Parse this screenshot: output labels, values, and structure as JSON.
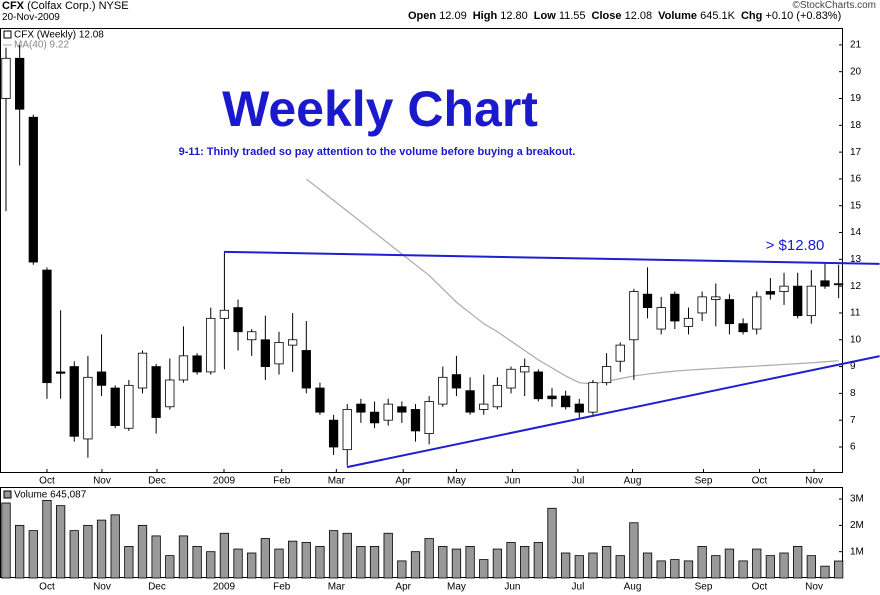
{
  "header": {
    "symbol": "CFX",
    "name": "(Colfax Corp.)",
    "exchange": "NYSE",
    "date": "20-Nov-2009",
    "quote": [
      {
        "label": "Open",
        "value": "12.09"
      },
      {
        "label": "High",
        "value": "12.80"
      },
      {
        "label": "Low",
        "value": "11.55"
      },
      {
        "label": "Close",
        "value": "12.08"
      },
      {
        "label": "Volume",
        "value": "645.1K"
      },
      {
        "label": "Chg",
        "value": "+0.10 (+0.83%)"
      }
    ],
    "credit": "©StockCharts.com"
  },
  "chart_data": {
    "type": "candlestick",
    "legend": {
      "price": "CFX (Weekly) 12.08",
      "ma": "MA(40) 9.22",
      "volume": "Volume 645,087"
    },
    "annotations": [
      "Weekly Chart",
      "9-11: Thinly traded so pay attention to the volume before buying a breakout.",
      "> $12.80"
    ],
    "open": [
      19.0,
      20.5,
      18.3,
      12.6,
      8.8,
      9.0,
      6.3,
      8.8,
      8.2,
      6.7,
      8.2,
      9.0,
      7.5,
      8.5,
      9.4,
      8.8,
      10.8,
      11.2,
      10.0,
      10.0,
      9.1,
      9.8,
      9.6,
      8.2,
      7.0,
      5.9,
      7.6,
      7.3,
      7.0,
      7.5,
      7.4,
      6.5,
      7.6,
      8.7,
      8.1,
      7.4,
      7.5,
      8.2,
      8.8,
      8.8,
      7.9,
      7.9,
      7.6,
      7.3,
      8.4,
      9.2,
      10.0,
      11.7,
      10.4,
      11.7,
      10.5,
      11.0,
      11.5,
      11.5,
      10.6,
      10.4,
      11.8,
      11.8,
      12.0,
      10.9,
      12.2,
      12.09
    ],
    "high": [
      20.9,
      21.0,
      18.4,
      12.7,
      11.1,
      9.2,
      9.4,
      10.2,
      8.3,
      8.5,
      9.6,
      9.1,
      9.3,
      10.5,
      9.5,
      11.2,
      13.3,
      11.5,
      10.4,
      10.9,
      10.3,
      11.0,
      10.7,
      8.4,
      7.2,
      7.6,
      7.8,
      7.7,
      7.8,
      7.7,
      7.6,
      7.9,
      9.0,
      9.4,
      8.6,
      8.7,
      8.6,
      9.0,
      9.3,
      8.9,
      8.2,
      8.1,
      7.8,
      8.5,
      9.5,
      9.9,
      11.9,
      12.7,
      11.6,
      11.8,
      11.2,
      11.8,
      12.1,
      11.7,
      10.8,
      11.8,
      12.3,
      12.5,
      12.5,
      12.6,
      12.9,
      12.8
    ],
    "low": [
      14.8,
      16.5,
      12.8,
      7.8,
      7.8,
      6.2,
      5.6,
      7.9,
      6.7,
      6.6,
      8.0,
      6.5,
      7.4,
      8.4,
      8.7,
      8.7,
      8.9,
      9.6,
      9.4,
      8.5,
      8.7,
      8.8,
      8.0,
      7.2,
      5.7,
      5.3,
      6.9,
      6.7,
      6.8,
      6.9,
      6.2,
      6.1,
      7.5,
      7.9,
      7.2,
      7.2,
      7.4,
      8.0,
      7.9,
      7.7,
      7.5,
      7.4,
      7.1,
      7.2,
      8.3,
      8.8,
      8.5,
      10.8,
      10.2,
      10.4,
      10.2,
      10.7,
      10.5,
      10.2,
      10.2,
      10.2,
      11.5,
      11.3,
      10.8,
      10.6,
      11.9,
      11.55
    ],
    "close": [
      20.5,
      18.6,
      12.9,
      8.4,
      8.75,
      6.4,
      8.6,
      8.3,
      6.8,
      8.3,
      9.5,
      7.1,
      8.5,
      9.4,
      8.8,
      10.8,
      11.1,
      10.3,
      10.3,
      9.0,
      9.9,
      10.0,
      8.2,
      7.3,
      6.0,
      7.4,
      7.3,
      6.9,
      7.6,
      7.3,
      6.6,
      7.7,
      8.6,
      8.2,
      7.3,
      7.6,
      8.3,
      8.9,
      9.0,
      7.8,
      7.8,
      7.5,
      7.3,
      8.4,
      9.0,
      9.8,
      11.8,
      11.2,
      11.2,
      10.7,
      10.8,
      11.6,
      11.6,
      10.6,
      10.3,
      11.6,
      11.7,
      12.0,
      10.9,
      12.0,
      12.0,
      12.08
    ],
    "volume": [
      2850000,
      2000000,
      1800000,
      2950000,
      2750000,
      1800000,
      2000000,
      2200000,
      2400000,
      1200000,
      2000000,
      1600000,
      850000,
      1600000,
      1200000,
      1000000,
      1700000,
      1100000,
      950000,
      1500000,
      1100000,
      1400000,
      1350000,
      1200000,
      1800000,
      1700000,
      1200000,
      1200000,
      1700000,
      650000,
      1000000,
      1500000,
      1200000,
      1100000,
      1200000,
      700000,
      1100000,
      1350000,
      1200000,
      1350000,
      2650000,
      950000,
      850000,
      950000,
      1200000,
      850000,
      2100000,
      950000,
      650000,
      700000,
      650000,
      1200000,
      850000,
      1100000,
      650000,
      1100000,
      850000,
      950000,
      1200000,
      850000,
      450000,
      645087
    ],
    "ma": [
      null,
      null,
      null,
      null,
      null,
      null,
      null,
      null,
      null,
      null,
      null,
      null,
      null,
      null,
      null,
      null,
      null,
      null,
      null,
      null,
      null,
      null,
      16.0,
      15.6,
      15.2,
      14.8,
      14.4,
      14.0,
      13.6,
      13.2,
      12.8,
      12.4,
      11.9,
      11.4,
      11.0,
      10.6,
      10.3,
      9.95,
      9.6,
      9.25,
      8.95,
      8.65,
      8.4,
      8.35,
      8.45,
      8.55,
      8.65,
      8.72,
      8.78,
      8.83,
      8.87,
      8.9,
      8.93,
      8.96,
      8.99,
      9.02,
      9.05,
      9.08,
      9.11,
      9.14,
      9.18,
      9.22
    ],
    "ma_color": "#aaaaaa",
    "up_color": "#ffffff",
    "down_color": "#000000",
    "volume_color": "#999999",
    "trendlines": [
      {
        "x": [
          15.97,
          64.0
        ],
        "y": [
          13.28,
          12.83
        ]
      },
      {
        "x": [
          24.98,
          64.0
        ],
        "y": [
          5.25,
          9.39
        ]
      }
    ],
    "trendline_color": "#1f1fd0",
    "xlim": [
      -0.44,
      61.32
    ],
    "xticks": [
      {
        "value": 3.0,
        "label": "Oct"
      },
      {
        "value": 7.03,
        "label": "Nov"
      },
      {
        "value": 11.06,
        "label": "Dec"
      },
      {
        "value": 15.97,
        "label": "2009"
      },
      {
        "value": 20.2,
        "label": "Feb"
      },
      {
        "value": 24.2,
        "label": "Mar"
      },
      {
        "value": 29.1,
        "label": "Apr"
      },
      {
        "value": 33.0,
        "label": "May"
      },
      {
        "value": 37.1,
        "label": "Jun"
      },
      {
        "value": 41.9,
        "label": "Jul"
      },
      {
        "value": 45.9,
        "label": "Aug"
      },
      {
        "value": 51.1,
        "label": "Sep"
      },
      {
        "value": 55.2,
        "label": "Oct"
      },
      {
        "value": 59.2,
        "label": "Nov"
      }
    ],
    "ylim": [
      5.03,
      21.63
    ],
    "yticks": [
      6,
      7,
      8,
      9,
      10,
      11,
      12,
      13,
      14,
      15,
      16,
      17,
      18,
      19,
      20,
      21
    ],
    "y2lim": [
      0,
      3420000
    ],
    "y2ticks": [
      {
        "value": 1000000,
        "label": "1M"
      },
      {
        "value": 2000000,
        "label": "2M"
      },
      {
        "value": 3000000,
        "label": "3M"
      }
    ]
  }
}
